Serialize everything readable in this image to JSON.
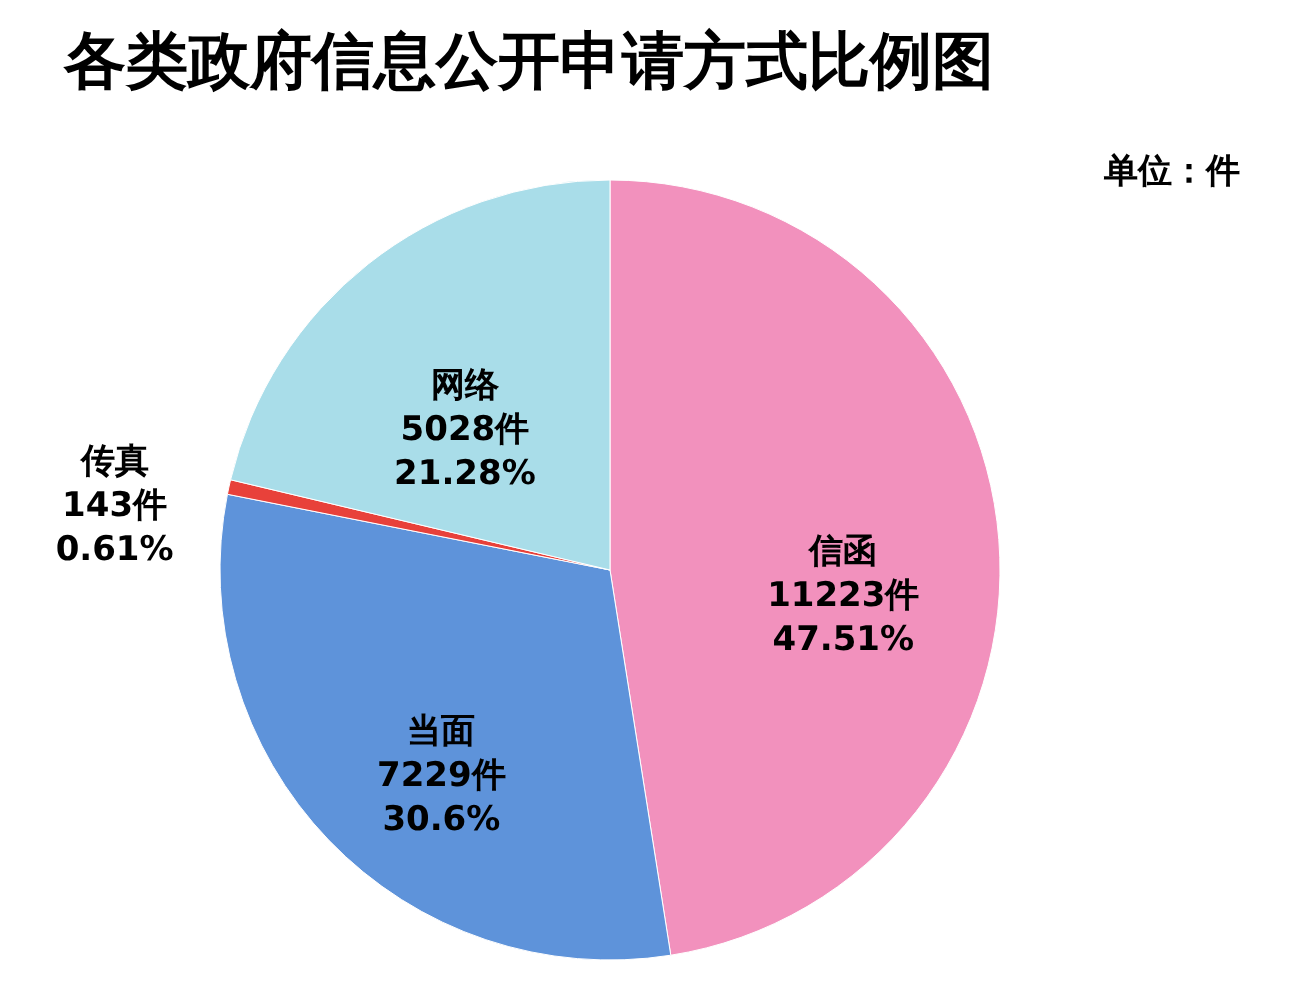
{
  "chart_data": {
    "type": "pie",
    "title": "各类政府信息公开申请方式比例图",
    "annotations": [
      "单位：件"
    ],
    "categories": [
      "信函",
      "当面",
      "传真",
      "网络"
    ],
    "values": [
      11223,
      7229,
      143,
      5028
    ],
    "value_labels": [
      "11223件\n47.51%",
      "7229件\n30.6%",
      "143件\n0.61%",
      "5028件\n21.28%"
    ],
    "colors": [
      "#f291bd",
      "#5e93da",
      "#e8413a",
      "#a9dde9"
    ],
    "legend": false
  }
}
